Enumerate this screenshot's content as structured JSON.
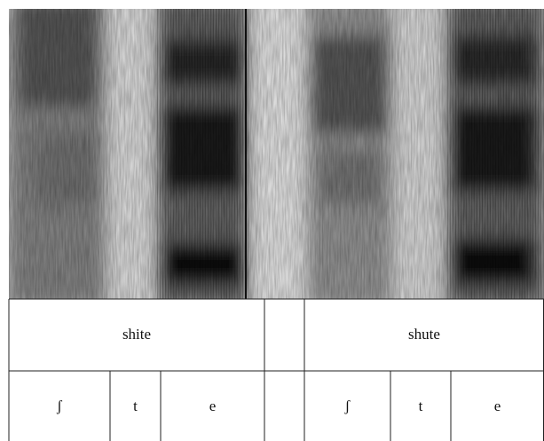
{
  "words": [
    {
      "label": "shite"
    },
    {
      "label": "shute"
    }
  ],
  "phones": [
    "ʃ",
    "t",
    "e",
    "ʃ",
    "t",
    "e"
  ]
}
